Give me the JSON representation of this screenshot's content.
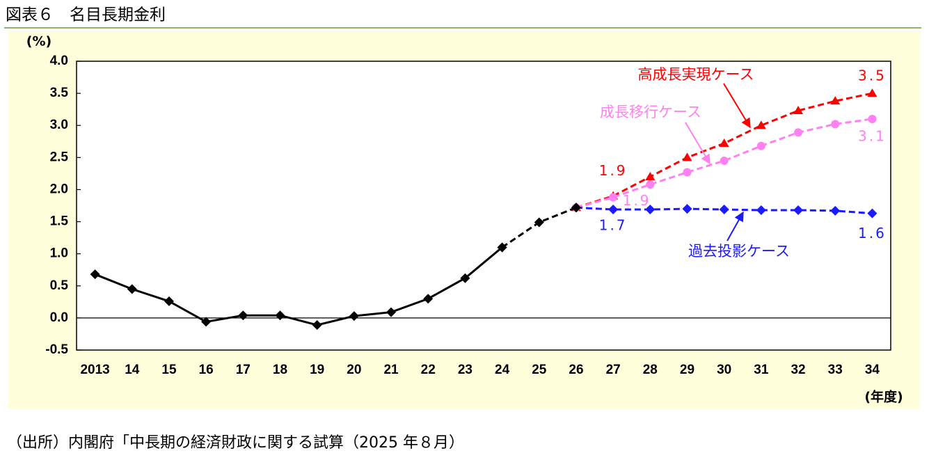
{
  "title": "図表６　名目長期金利",
  "source": "（出所）内閣府「中長期の経済財政に関する試算（2025 年８月）",
  "chart_data": {
    "type": "line",
    "y_unit": "(%)",
    "x_unit": "(年度)",
    "categories": [
      "2013",
      "14",
      "15",
      "16",
      "17",
      "18",
      "19",
      "20",
      "21",
      "22",
      "23",
      "24",
      "25",
      "26",
      "27",
      "28",
      "29",
      "30",
      "31",
      "32",
      "33",
      "34"
    ],
    "ylim": [
      -0.5,
      4.0
    ],
    "yticks": [
      -0.5,
      {
        "value": 0,
        "label": "0.0"
      },
      0.5,
      {
        "value": 1,
        "label": "1.0"
      },
      1.5,
      {
        "value": 2,
        "label": "2.0"
      },
      2.5,
      {
        "value": 3,
        "label": "3.0"
      },
      3.5,
      {
        "value": 4,
        "label": "4.0"
      }
    ],
    "series": [
      {
        "name": "高成長実現ケース",
        "color": "#ff0000",
        "marker": "triangle",
        "line_style": "dashed",
        "values": [
          null,
          null,
          null,
          null,
          null,
          null,
          null,
          null,
          null,
          null,
          null,
          null,
          null,
          1.72,
          1.9,
          2.2,
          2.5,
          2.72,
          3.0,
          3.23,
          3.38,
          3.5
        ],
        "value_labels": [
          null,
          null,
          null,
          null,
          null,
          null,
          null,
          null,
          null,
          null,
          null,
          null,
          null,
          null,
          "1.9",
          null,
          null,
          null,
          null,
          null,
          null,
          "3.5"
        ]
      },
      {
        "name": "成長移行ケース",
        "color": "#ff80f0",
        "marker": "circle",
        "line_style": "dashed",
        "values": [
          null,
          null,
          null,
          null,
          null,
          null,
          null,
          null,
          null,
          null,
          null,
          null,
          null,
          1.72,
          1.88,
          2.08,
          2.27,
          2.45,
          2.68,
          2.89,
          3.02,
          3.1
        ],
        "value_labels": [
          null,
          null,
          null,
          null,
          null,
          null,
          null,
          null,
          null,
          null,
          null,
          null,
          null,
          null,
          "1.9",
          null,
          null,
          null,
          null,
          null,
          null,
          "3.1"
        ]
      },
      {
        "name": "過去投影ケース",
        "color": "#1a1aff",
        "marker": "diamond",
        "line_style": "dashed",
        "values": [
          null,
          null,
          null,
          null,
          null,
          null,
          null,
          null,
          null,
          null,
          null,
          null,
          null,
          1.72,
          1.69,
          1.69,
          1.7,
          1.69,
          1.68,
          1.68,
          1.67,
          1.63
        ],
        "value_labels": [
          null,
          null,
          null,
          null,
          null,
          null,
          null,
          null,
          null,
          null,
          null,
          null,
          null,
          null,
          "1.7",
          null,
          null,
          null,
          null,
          null,
          null,
          "1.6"
        ]
      },
      {
        "color": "#000000",
        "marker": "diamond",
        "line_style": "dashed",
        "values": [
          null,
          null,
          null,
          null,
          null,
          null,
          null,
          null,
          null,
          null,
          null,
          1.1,
          1.49,
          1.72,
          null,
          null,
          null,
          null,
          null,
          null,
          null,
          null
        ]
      },
      {
        "color": "#000000",
        "marker": "diamond",
        "line_style": "solid",
        "values": [
          0.68,
          0.45,
          0.26,
          -0.06,
          0.04,
          0.04,
          -0.11,
          0.03,
          0.09,
          0.3,
          0.62,
          1.1,
          null,
          null,
          null,
          null,
          null,
          null,
          null,
          null,
          null,
          null
        ]
      }
    ]
  }
}
